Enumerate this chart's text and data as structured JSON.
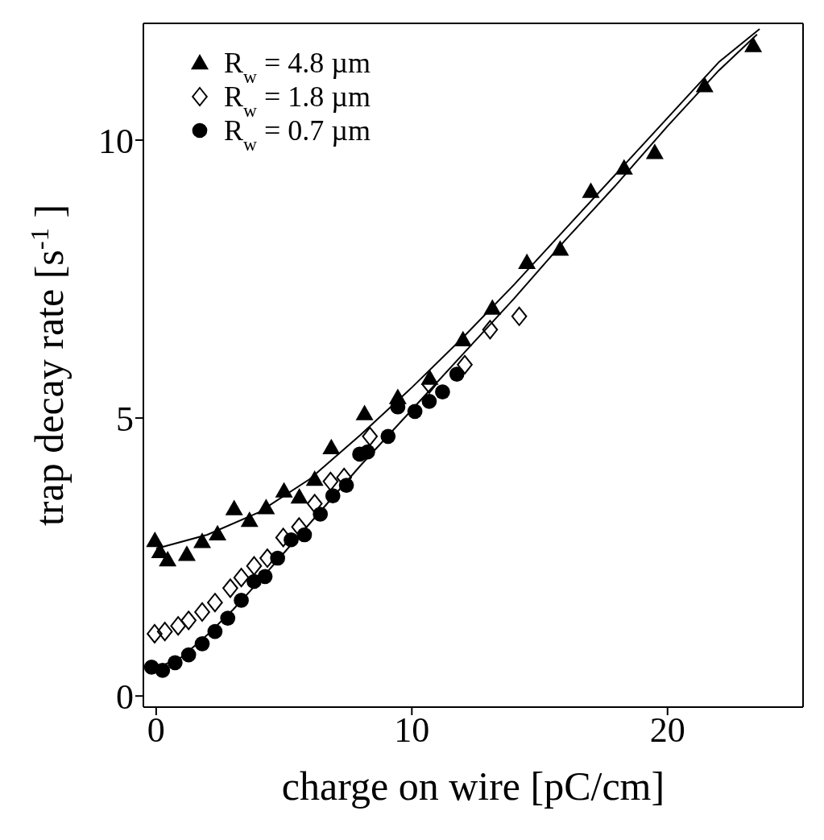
{
  "chart_data": {
    "type": "scatter",
    "xlabel": "charge on wire   [pC/cm]",
    "ylabel": "trap decay rate   [s$^{-1}$]",
    "xlim": [
      -0.5,
      25.3
    ],
    "ylim": [
      -0.2,
      12.1
    ],
    "xticks": [
      0,
      10,
      20
    ],
    "yticks": [
      0,
      5,
      10
    ],
    "grid": false,
    "legend": "top left",
    "series": [
      {
        "name": "R$_{w}$ = 4.8 µm",
        "color": "#000000",
        "marker": "triangle",
        "x": [
          -0.05,
          0.15,
          0.45,
          1.2,
          1.8,
          2.4,
          3.05,
          3.65,
          4.3,
          5.0,
          5.6,
          6.2,
          6.85,
          8.15,
          9.45,
          10.7,
          12.0,
          13.15,
          14.5,
          15.8,
          17.0,
          18.3,
          19.5,
          21.45,
          23.35
        ],
        "values": [
          2.8,
          2.6,
          2.45,
          2.55,
          2.78,
          2.92,
          3.37,
          3.16,
          3.39,
          3.69,
          3.58,
          3.9,
          4.47,
          5.08,
          5.37,
          5.72,
          6.41,
          6.98,
          7.8,
          8.04,
          9.08,
          9.5,
          9.78,
          10.98,
          11.7
        ]
      },
      {
        "name": "R$_{w}$ = 1.8 µm",
        "color": "#000000",
        "marker": "diamond",
        "x": [
          -0.06,
          0.34,
          0.86,
          1.27,
          1.8,
          2.3,
          2.9,
          3.33,
          3.83,
          4.35,
          4.97,
          5.59,
          6.2,
          6.82,
          7.35,
          8.36,
          10.68,
          12.07,
          13.06,
          14.2
        ],
        "values": [
          1.12,
          1.16,
          1.26,
          1.36,
          1.51,
          1.68,
          1.94,
          2.13,
          2.34,
          2.48,
          2.85,
          3.04,
          3.46,
          3.86,
          3.93,
          4.67,
          5.61,
          5.96,
          6.59,
          6.83
        ]
      },
      {
        "name": "R$_{w}$ = 0.7 µm",
        "color": "#000000",
        "marker": "circle",
        "x": [
          -0.18,
          0.25,
          0.74,
          1.27,
          1.8,
          2.3,
          2.8,
          3.33,
          3.83,
          4.26,
          4.75,
          5.28,
          5.8,
          6.42,
          6.91,
          7.44,
          7.96,
          8.27,
          9.07,
          9.45,
          10.12,
          10.68,
          11.2,
          11.76
        ],
        "values": [
          0.52,
          0.46,
          0.6,
          0.74,
          0.94,
          1.16,
          1.4,
          1.72,
          2.06,
          2.15,
          2.48,
          2.81,
          2.9,
          3.27,
          3.6,
          3.79,
          4.35,
          4.39,
          4.67,
          5.2,
          5.12,
          5.3,
          5.47,
          5.79
        ]
      },
      {
        "type": "line",
        "color": "#000000",
        "marker": "none",
        "x": [
          0,
          2,
          4,
          6,
          8,
          10,
          12,
          14,
          16,
          18,
          20,
          22,
          23.6
        ],
        "values": [
          2.65,
          2.9,
          3.3,
          3.9,
          4.7,
          5.55,
          6.45,
          7.4,
          8.4,
          9.4,
          10.4,
          11.4,
          12.0
        ]
      },
      {
        "type": "line",
        "color": "#000000",
        "marker": "none",
        "x": [
          0,
          1,
          2,
          3,
          4,
          6,
          8,
          10,
          12,
          14,
          16,
          18,
          20,
          22,
          23.5
        ],
        "values": [
          0.5,
          0.7,
          1.1,
          1.55,
          2.05,
          3.1,
          4.15,
          5.15,
          6.15,
          7.15,
          8.2,
          9.2,
          10.25,
          11.25,
          11.9
        ]
      }
    ]
  }
}
